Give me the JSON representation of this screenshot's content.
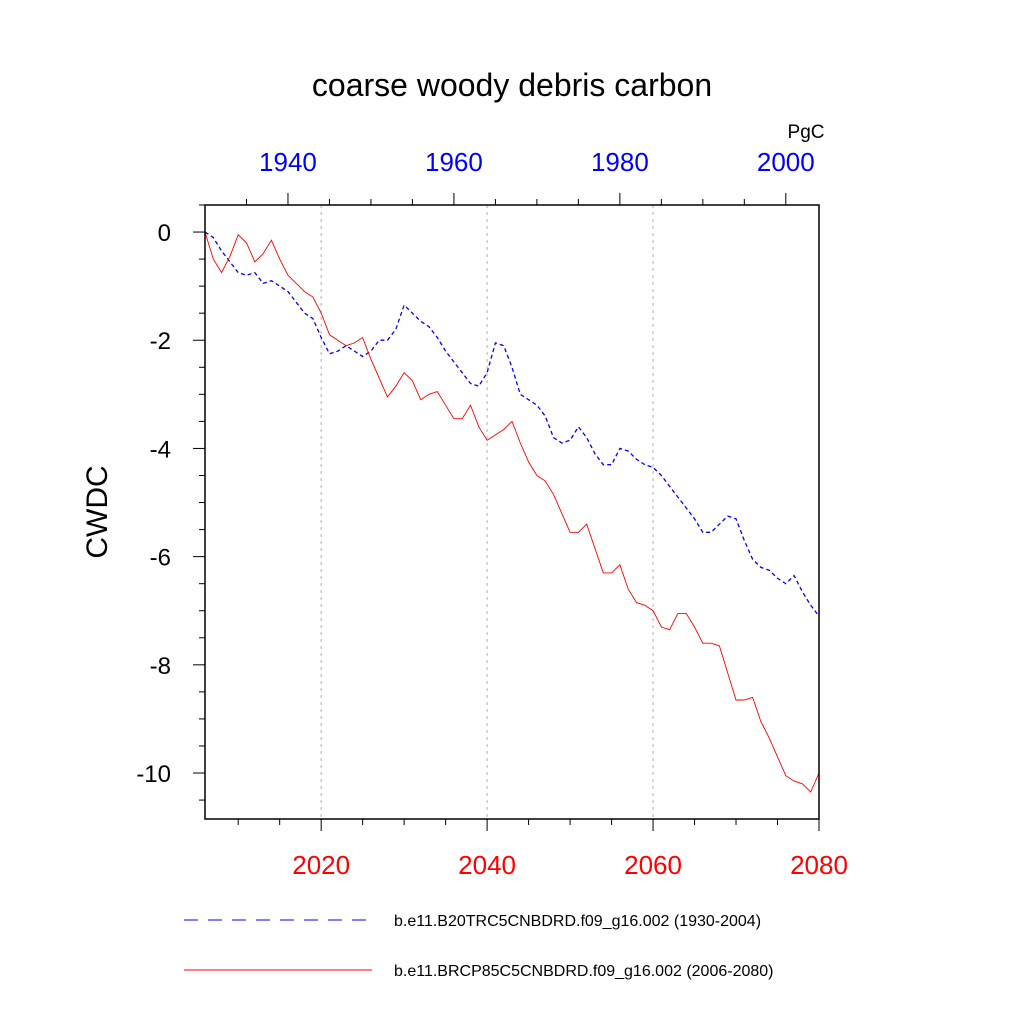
{
  "chart_data": {
    "type": "line",
    "title": "coarse woody debris carbon",
    "ylabel": "CWDC",
    "units": "PgC",
    "ylim": [
      -10.85,
      0.5
    ],
    "yticks": [
      0,
      -2,
      -4,
      -6,
      -8,
      -10
    ],
    "ytick_labels": [
      "0",
      "-2",
      "-4",
      "-6",
      "-8",
      "-10"
    ],
    "x_bottom": {
      "range": [
        2006,
        2080
      ],
      "ticks": [
        2020,
        2040,
        2060,
        2080
      ],
      "tick_labels": [
        "2020",
        "2040",
        "2060",
        "2080"
      ],
      "color": "#ff0000"
    },
    "x_top": {
      "range": [
        1930,
        2004
      ],
      "ticks": [
        1940,
        1960,
        1980,
        2000
      ],
      "tick_labels": [
        "1940",
        "1960",
        "1980",
        "2000"
      ],
      "color": "#0000ff"
    },
    "grid": "vertical dotted at bottom-axis major ticks",
    "series": [
      {
        "name": "b.e11.B20TRC5CNBDRD.f09_g16.002 (1930-2004)",
        "axis": "top",
        "color": "#0000ff",
        "style": "dashed",
        "x": [
          1930,
          1931,
          1932,
          1933,
          1934,
          1935,
          1936,
          1937,
          1938,
          1939,
          1940,
          1941,
          1942,
          1943,
          1944,
          1945,
          1946,
          1947,
          1948,
          1949,
          1950,
          1951,
          1952,
          1953,
          1954,
          1955,
          1956,
          1957,
          1958,
          1959,
          1960,
          1961,
          1962,
          1963,
          1964,
          1965,
          1966,
          1967,
          1968,
          1969,
          1970,
          1971,
          1972,
          1973,
          1974,
          1975,
          1976,
          1977,
          1978,
          1979,
          1980,
          1981,
          1982,
          1983,
          1984,
          1985,
          1986,
          1987,
          1988,
          1989,
          1990,
          1991,
          1992,
          1993,
          1994,
          1995,
          1996,
          1997,
          1998,
          1999,
          2000,
          2001,
          2002,
          2003,
          2004
        ],
        "values": [
          0,
          -0.1,
          -0.35,
          -0.55,
          -0.75,
          -0.8,
          -0.75,
          -0.95,
          -0.9,
          -1.0,
          -1.1,
          -1.3,
          -1.5,
          -1.6,
          -1.95,
          -2.25,
          -2.2,
          -2.1,
          -2.2,
          -2.3,
          -2.2,
          -2.0,
          -2.0,
          -1.8,
          -1.35,
          -1.5,
          -1.65,
          -1.75,
          -1.95,
          -2.2,
          -2.4,
          -2.6,
          -2.8,
          -2.85,
          -2.6,
          -2.05,
          -2.1,
          -2.5,
          -3.0,
          -3.1,
          -3.2,
          -3.4,
          -3.8,
          -3.9,
          -3.85,
          -3.6,
          -3.8,
          -4.1,
          -4.3,
          -4.3,
          -4.0,
          -4.05,
          -4.2,
          -4.3,
          -4.35,
          -4.5,
          -4.7,
          -4.9,
          -5.1,
          -5.3,
          -5.55,
          -5.55,
          -5.4,
          -5.25,
          -5.3,
          -5.7,
          -6.05,
          -6.2,
          -6.25,
          -6.4,
          -6.5,
          -6.35,
          -6.65,
          -6.9,
          -7.1
        ]
      },
      {
        "name": "b.e11.BRCP85C5CNBDRD.f09_g16.002 (2006-2080)",
        "axis": "bottom",
        "color": "#ff0000",
        "style": "solid",
        "x": [
          2006,
          2007,
          2008,
          2009,
          2010,
          2011,
          2012,
          2013,
          2014,
          2015,
          2016,
          2017,
          2018,
          2019,
          2020,
          2021,
          2022,
          2023,
          2024,
          2025,
          2026,
          2027,
          2028,
          2029,
          2030,
          2031,
          2032,
          2033,
          2034,
          2035,
          2036,
          2037,
          2038,
          2039,
          2040,
          2041,
          2042,
          2043,
          2044,
          2045,
          2046,
          2047,
          2048,
          2049,
          2050,
          2051,
          2052,
          2053,
          2054,
          2055,
          2056,
          2057,
          2058,
          2059,
          2060,
          2061,
          2062,
          2063,
          2064,
          2065,
          2066,
          2067,
          2068,
          2069,
          2070,
          2071,
          2072,
          2073,
          2074,
          2075,
          2076,
          2077,
          2078,
          2079,
          2080
        ],
        "values": [
          0,
          -0.5,
          -0.75,
          -0.45,
          -0.05,
          -0.2,
          -0.55,
          -0.4,
          -0.15,
          -0.5,
          -0.8,
          -0.95,
          -1.1,
          -1.2,
          -1.5,
          -1.9,
          -2.0,
          -2.1,
          -2.05,
          -1.95,
          -2.35,
          -2.7,
          -3.05,
          -2.85,
          -2.6,
          -2.75,
          -3.1,
          -3.0,
          -2.95,
          -3.2,
          -3.45,
          -3.45,
          -3.2,
          -3.6,
          -3.85,
          -3.75,
          -3.65,
          -3.5,
          -3.9,
          -4.25,
          -4.5,
          -4.6,
          -4.85,
          -5.2,
          -5.55,
          -5.55,
          -5.4,
          -5.85,
          -6.3,
          -6.3,
          -6.15,
          -6.6,
          -6.85,
          -6.9,
          -7.0,
          -7.3,
          -7.35,
          -7.05,
          -7.05,
          -7.3,
          -7.6,
          -7.6,
          -7.65,
          -8.15,
          -8.65,
          -8.65,
          -8.6,
          -9.05,
          -9.35,
          -9.7,
          -10.05,
          -10.15,
          -10.2,
          -10.35,
          -10.0
        ]
      }
    ]
  }
}
